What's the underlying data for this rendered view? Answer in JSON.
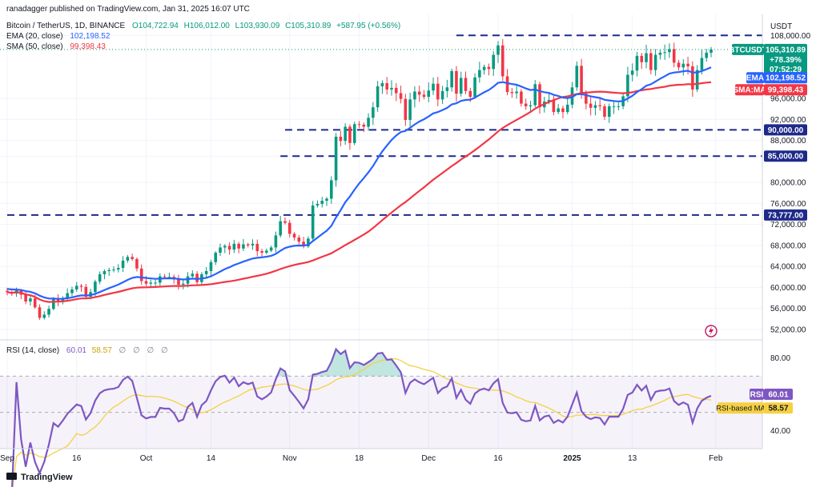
{
  "header": {
    "publisher": "ranadagger published on TradingView.com, Jan 31, 2025 16:07 UTC",
    "symbol_line": "Bitcoin / TetherUS, 1D, BINANCE",
    "ohlc": {
      "o": "O104,722.94",
      "h": "H106,012.00",
      "l": "L103,930.09",
      "c": "C105,310.89",
      "chg": "+587.95 (+0.56%)"
    },
    "ema_label": "EMA (20, close)",
    "ema_value": "102,198.52",
    "sma_label": "SMA (50, close)",
    "sma_value": "99,398.43"
  },
  "footer": {
    "brand": "TradingView"
  },
  "colors": {
    "up": "#089981",
    "down": "#f23645",
    "ema": "#2962ff",
    "sma": "#f23645",
    "rsi": "#7e57c2",
    "rsi_ma": "#f5d142",
    "level": "#1e2a8a"
  },
  "chart_data": [
    {
      "type": "candlestick",
      "title": "Bitcoin / TetherUS, 1D, BINANCE",
      "currency": "USDT",
      "ylim": [
        50000,
        112000
      ],
      "y_ticks": [
        52000,
        56000,
        60000,
        64000,
        68000,
        72000,
        76000,
        80000,
        85000,
        88000,
        92000,
        96000,
        108000
      ],
      "y_tick_labels": [
        "52,000.00",
        "56,000.00",
        "60,000.00",
        "64,000.00",
        "68,000.00",
        "72,000.00",
        "76,000.00",
        "80,000.00",
        "85,000.00",
        "88,000.00",
        "92,000.00",
        "96,000.00",
        "108,000.00"
      ],
      "x_labels": [
        {
          "i": 0,
          "text": "Sep"
        },
        {
          "i": 15,
          "text": "16"
        },
        {
          "i": 30,
          "text": "Oct"
        },
        {
          "i": 44,
          "text": "14"
        },
        {
          "i": 61,
          "text": "Nov"
        },
        {
          "i": 76,
          "text": "18"
        },
        {
          "i": 91,
          "text": "Dec"
        },
        {
          "i": 106,
          "text": "16"
        },
        {
          "i": 122,
          "text": "2025"
        },
        {
          "i": 135,
          "text": "13"
        },
        {
          "i": 153,
          "text": "Feb"
        }
      ],
      "horizontal_levels": [
        {
          "value": 108000,
          "label": "",
          "from_index": 97
        },
        {
          "value": 90000,
          "label": "90,000.00",
          "from_index": 60
        },
        {
          "value": 85000,
          "label": "85,000.00",
          "from_index": 59
        },
        {
          "value": 73777,
          "label": "73,777.00",
          "from_index": 0
        }
      ],
      "closes": [
        59100,
        58800,
        59400,
        58600,
        57300,
        57900,
        56200,
        54200,
        54800,
        55900,
        57800,
        57300,
        58000,
        58900,
        59600,
        60300,
        60100,
        58200,
        59100,
        61100,
        62500,
        63100,
        63300,
        63400,
        63700,
        65100,
        65800,
        65400,
        63600,
        61200,
        60700,
        60900,
        60900,
        62100,
        62000,
        62000,
        61500,
        60500,
        60700,
        62100,
        62600,
        61000,
        62500,
        63100,
        64800,
        66600,
        67600,
        67900,
        67200,
        68300,
        67400,
        68200,
        68000,
        68300,
        66900,
        66600,
        67000,
        67600,
        69900,
        72600,
        72300,
        70200,
        69500,
        68700,
        67800,
        69300,
        75600,
        75900,
        76500,
        76900,
        80400,
        88700,
        87900,
        90600,
        87500,
        91100,
        91000,
        90600,
        92300,
        94300,
        98300,
        98900,
        97700,
        98000,
        97000,
        95900,
        91900,
        95800,
        97300,
        96700,
        96300,
        97500,
        98800,
        95800,
        97400,
        98100,
        101200,
        96900,
        99900,
        97400,
        96300,
        100000,
        101400,
        102000,
        101600,
        104300,
        106100,
        100200,
        97200,
        97000,
        97300,
        95000,
        94500,
        94700,
        98700,
        94300,
        95400,
        95700,
        93400,
        94100,
        93400,
        94800,
        98100,
        102200,
        96900,
        95000,
        94200,
        94700,
        94500,
        92500,
        94500,
        94500,
        94500,
        96400,
        100500,
        101300,
        104100,
        102900,
        104600,
        101400,
        104300,
        104700,
        104800,
        105400,
        102800,
        101900,
        102600,
        102100,
        97700,
        101400,
        103700,
        104700,
        105310.89
      ],
      "last_price_label": "105,310.89",
      "last_change_label": "+78.39%",
      "countdown_label": "07:52:29",
      "series_labels": [
        {
          "name": "BTCUSDT",
          "color": "#089981"
        },
        {
          "name": "EMA",
          "value_label": "102,198.52",
          "color": "#2962ff"
        },
        {
          "name": "SMA:MA",
          "value_label": "99,398.43",
          "color": "#f23645"
        }
      ]
    },
    {
      "type": "line",
      "title": "RSI (14, close)",
      "legend_values": [
        "60.01",
        "58.57",
        "∅",
        "∅",
        "∅",
        "∅"
      ],
      "ylim": [
        30,
        90
      ],
      "bands": {
        "upper": 70,
        "middle": 50,
        "lower": 30
      },
      "y_tick_labels": [
        {
          "v": 80,
          "text": "80.00"
        },
        {
          "v": 40,
          "text": "40.00"
        }
      ],
      "series": [
        {
          "name": "RSI",
          "value_label": "60.01",
          "color": "#7e57c2"
        },
        {
          "name": "RSI-based MA",
          "value_label": "58.57",
          "color": "#f5d142"
        }
      ]
    }
  ]
}
